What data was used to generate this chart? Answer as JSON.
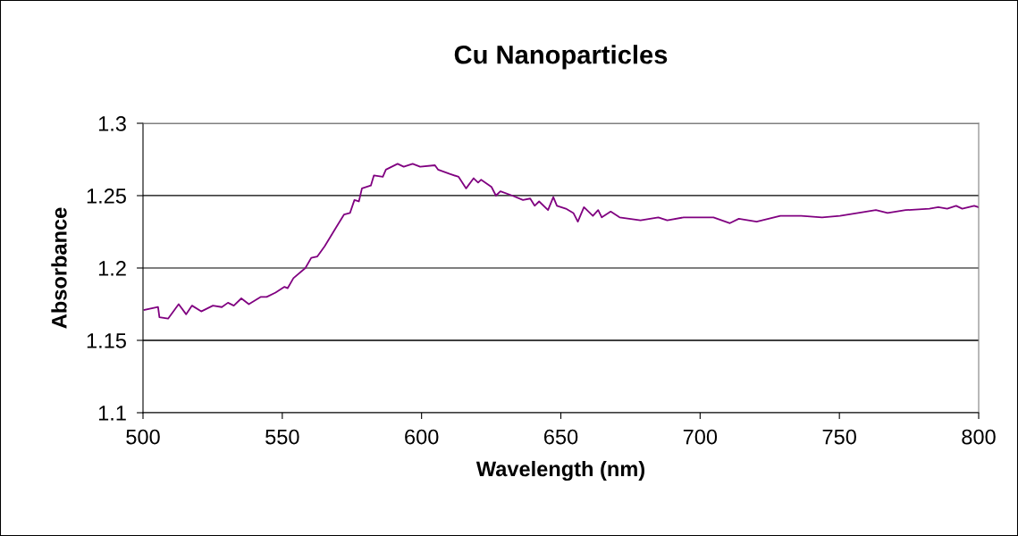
{
  "chart_data": {
    "type": "line",
    "title": "Cu Nanoparticles",
    "xlabel": "Wavelength (nm)",
    "ylabel": "Absorbance",
    "xlim": [
      500,
      800
    ],
    "xticks": [
      500,
      550,
      600,
      650,
      700,
      750,
      800
    ],
    "ylim": [
      1.1,
      1.3
    ],
    "yticks": [
      1.1,
      1.15,
      1.2,
      1.25,
      1.3
    ],
    "grid": "y",
    "legend": false,
    "marker": "none",
    "line_style": "solid",
    "series": [
      {
        "color": "#800080",
        "x": [
          500.5,
          505.4,
          505.9,
          509,
          512.8,
          515.5,
          517.6,
          520.9,
          525.1,
          528.3,
          530.5,
          532.6,
          535.3,
          538,
          542.2,
          544.4,
          547.6,
          550.8,
          551.9,
          554,
          558.3,
          560.4,
          562.6,
          565.2,
          569,
          572.2,
          574.3,
          575.9,
          577.5,
          578.6,
          581.8,
          582.9,
          586.1,
          587.2,
          591.4,
          593.6,
          596.8,
          599.5,
          604.8,
          605.9,
          610.1,
          613.3,
          616,
          618.7,
          620.3,
          621.4,
          625.1,
          626.7,
          628.3,
          632.6,
          636.4,
          639,
          640.6,
          642.2,
          645.4,
          647.3,
          648.6,
          651.8,
          654.5,
          656.1,
          658.3,
          661.5,
          663.4,
          664.7,
          667.9,
          671.1,
          678.6,
          685,
          688.2,
          694.1,
          698.9,
          704.8,
          710.7,
          713.9,
          720.3,
          728.8,
          736.3,
          743.8,
          750.2,
          756.7,
          763.1,
          767.3,
          773.8,
          782.3,
          785.5,
          788.7,
          791.9,
          794.1,
          798.4,
          800
        ],
        "values": [
          1.171,
          1.173,
          1.166,
          1.165,
          1.175,
          1.168,
          1.174,
          1.17,
          1.174,
          1.173,
          1.176,
          1.174,
          1.179,
          1.175,
          1.18,
          1.18,
          1.183,
          1.187,
          1.186,
          1.193,
          1.2,
          1.207,
          1.208,
          1.215,
          1.227,
          1.237,
          1.238,
          1.247,
          1.246,
          1.255,
          1.257,
          1.264,
          1.263,
          1.268,
          1.272,
          1.27,
          1.272,
          1.27,
          1.271,
          1.268,
          1.265,
          1.263,
          1.255,
          1.262,
          1.259,
          1.261,
          1.256,
          1.25,
          1.253,
          1.25,
          1.247,
          1.248,
          1.243,
          1.246,
          1.24,
          1.249,
          1.243,
          1.241,
          1.238,
          1.232,
          1.242,
          1.236,
          1.24,
          1.235,
          1.239,
          1.235,
          1.233,
          1.235,
          1.233,
          1.235,
          1.235,
          1.235,
          1.231,
          1.234,
          1.232,
          1.236,
          1.236,
          1.235,
          1.236,
          1.238,
          1.24,
          1.238,
          1.24,
          1.241,
          1.242,
          1.241,
          1.243,
          1.241,
          1.243,
          1.242
        ]
      }
    ]
  }
}
